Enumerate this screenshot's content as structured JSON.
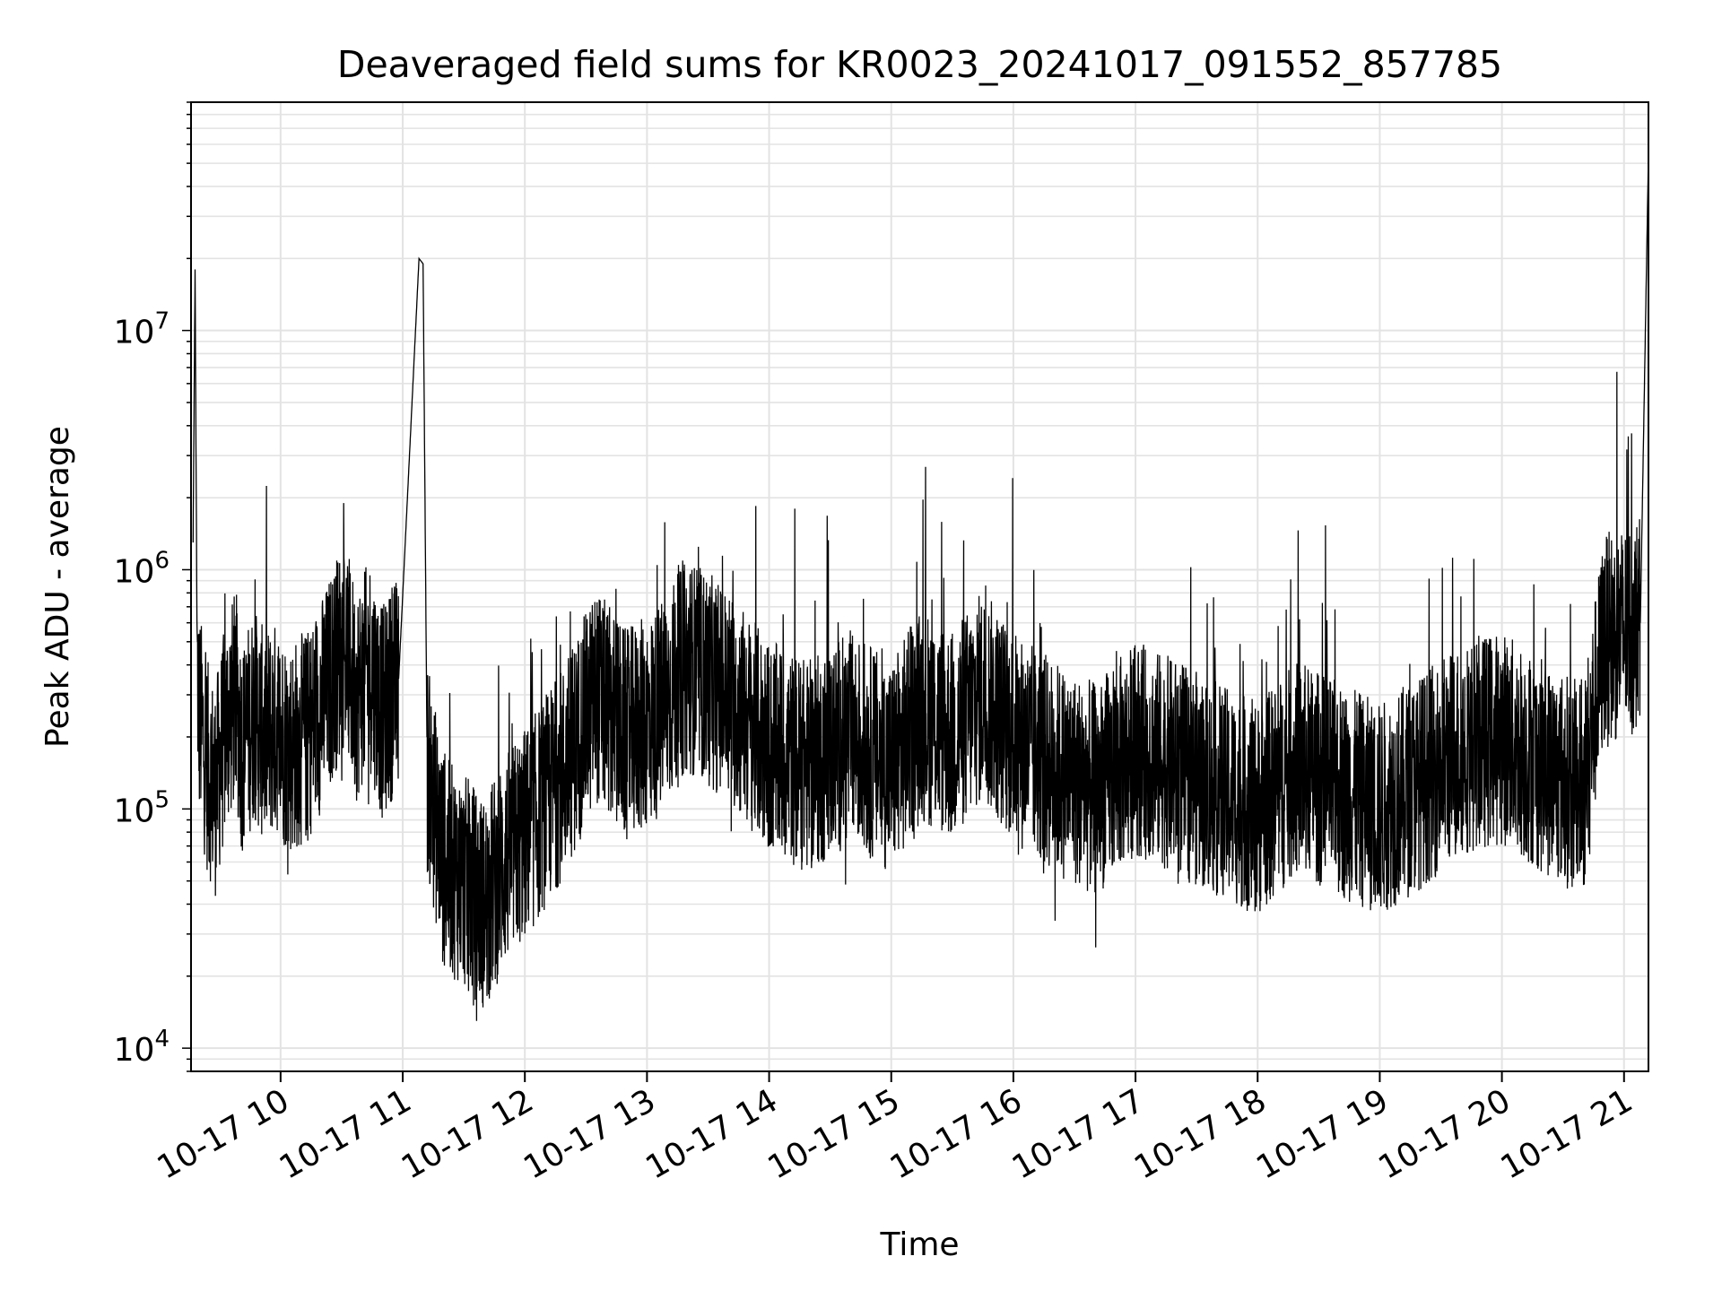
{
  "chart_data": {
    "type": "line",
    "title": "Deaveraged field sums for KR0023_20241017_091552_857785",
    "xlabel": "Time",
    "ylabel": "Peak ADU - average",
    "y_scale": "log",
    "ylim": [
      8000,
      90000000
    ],
    "xlim": [
      "2024-10-17 09:16",
      "2024-10-17 21:12"
    ],
    "grid": true,
    "line_color": "#000000",
    "x_tick_labels": [
      "10-17 10",
      "10-17 11",
      "10-17 12",
      "10-17 13",
      "10-17 14",
      "10-17 15",
      "10-17 16",
      "10-17 17",
      "10-17 18",
      "10-17 19",
      "10-17 20",
      "10-17 21"
    ],
    "y_tick_labels": [
      {
        "base": "10",
        "exp": "4",
        "value": 10000
      },
      {
        "base": "10",
        "exp": "5",
        "value": 100000
      },
      {
        "base": "10",
        "exp": "6",
        "value": 1000000
      },
      {
        "base": "10",
        "exp": "7",
        "value": 10000000
      }
    ],
    "series": [
      {
        "values_description_note_free": true,
        "x": [
          "2024-10-17 09:17",
          "2024-10-17 09:18",
          "2024-10-17 09:19",
          "2024-10-17 09:20",
          "2024-10-17 09:24",
          "2024-10-17 09:28",
          "2024-10-17 09:33",
          "2024-10-17 09:38",
          "2024-10-17 09:41",
          "2024-10-17 09:47",
          "2024-10-17 09:52",
          "2024-10-17 09:58",
          "2024-10-17 10:04",
          "2024-10-17 10:13",
          "2024-10-17 10:22",
          "2024-10-17 10:31",
          "2024-10-17 10:37",
          "2024-10-17 10:44",
          "2024-10-17 10:50",
          "2024-10-17 10:58",
          "2024-10-17 11:08",
          "2024-10-17 11:10",
          "2024-10-17 11:12",
          "2024-10-17 11:20",
          "2024-10-17 11:30",
          "2024-10-17 11:40",
          "2024-10-17 11:50",
          "2024-10-17 12:05",
          "2024-10-17 12:20",
          "2024-10-17 12:35",
          "2024-10-17 12:50",
          "2024-10-17 13:05",
          "2024-10-17 13:20",
          "2024-10-17 13:40",
          "2024-10-17 14:00",
          "2024-10-17 14:20",
          "2024-10-17 14:40",
          "2024-10-17 15:00",
          "2024-10-17 15:15",
          "2024-10-17 15:30",
          "2024-10-17 15:45",
          "2024-10-17 16:00",
          "2024-10-17 16:20",
          "2024-10-17 16:40",
          "2024-10-17 17:00",
          "2024-10-17 17:20",
          "2024-10-17 17:40",
          "2024-10-17 18:00",
          "2024-10-17 18:20",
          "2024-10-17 18:40",
          "2024-10-17 19:00",
          "2024-10-17 19:20",
          "2024-10-17 19:40",
          "2024-10-17 20:00",
          "2024-10-17 20:20",
          "2024-10-17 20:40",
          "2024-10-17 20:50",
          "2024-10-17 21:00",
          "2024-10-17 21:08",
          "2024-10-17 21:12"
        ],
        "y": [
          1300000,
          18000000,
          400000,
          250000,
          150000,
          120000,
          220000,
          300000,
          180000,
          250000,
          200000,
          220000,
          180000,
          200000,
          300000,
          500000,
          300000,
          400000,
          250000,
          350000,
          20000000,
          19000000,
          150000,
          60000,
          50000,
          40000,
          60000,
          90000,
          150000,
          300000,
          200000,
          250000,
          400000,
          300000,
          180000,
          150000,
          200000,
          150000,
          250000,
          200000,
          300000,
          200000,
          150000,
          120000,
          180000,
          150000,
          120000,
          100000,
          150000,
          120000,
          100000,
          130000,
          180000,
          200000,
          150000,
          120000,
          500000,
          550000,
          600000,
          55000000
        ]
      }
    ]
  }
}
